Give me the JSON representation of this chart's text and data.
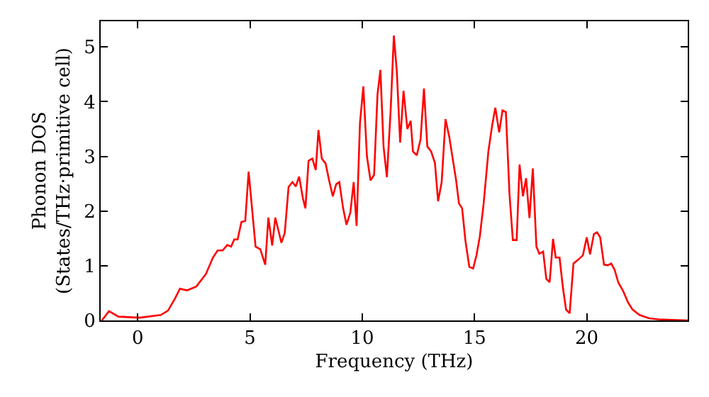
{
  "chart_data": {
    "type": "line",
    "xlabel": "Frequency (THz)",
    "ylabel": "Phonon DOS\n(States/THz·primitive cell)",
    "xlim": [
      -1.65,
      24.5
    ],
    "ylim": [
      0,
      5.47
    ],
    "xticks": [
      0,
      5,
      10,
      15,
      20
    ],
    "yticks": [
      0,
      1,
      2,
      3,
      4,
      5
    ],
    "marker": "none",
    "line_style": "solid",
    "series": [
      {
        "color": "#ff0000",
        "x": [
          -1.6,
          -1.28,
          -0.86,
          0.08,
          1.03,
          1.35,
          1.66,
          1.88,
          2.2,
          2.61,
          3.04,
          3.35,
          3.56,
          3.78,
          3.99,
          4.16,
          4.3,
          4.45,
          4.62,
          4.79,
          4.94,
          5.25,
          5.46,
          5.68,
          5.82,
          5.99,
          6.13,
          6.4,
          6.55,
          6.72,
          6.89,
          7.04,
          7.19,
          7.36,
          7.47,
          7.61,
          7.78,
          7.93,
          8.05,
          8.2,
          8.37,
          8.52,
          8.69,
          8.84,
          8.98,
          9.15,
          9.3,
          9.47,
          9.62,
          9.75,
          9.9,
          10.05,
          10.21,
          10.37,
          10.53,
          10.68,
          10.81,
          10.95,
          11.1,
          11.27,
          11.41,
          11.54,
          11.69,
          11.84,
          12.01,
          12.16,
          12.26,
          12.43,
          12.6,
          12.75,
          12.9,
          13.07,
          13.24,
          13.38,
          13.54,
          13.71,
          13.88,
          14.03,
          14.18,
          14.31,
          14.45,
          14.6,
          14.77,
          14.94,
          15.09,
          15.24,
          15.41,
          15.62,
          15.79,
          15.93,
          16.1,
          16.25,
          16.4,
          16.56,
          16.71,
          16.88,
          17.01,
          17.16,
          17.3,
          17.45,
          17.6,
          17.76,
          17.89,
          18.06,
          18.2,
          18.35,
          18.5,
          18.62,
          18.79,
          18.94,
          19.08,
          19.24,
          19.41,
          19.62,
          19.83,
          20.0,
          20.15,
          20.32,
          20.46,
          20.6,
          20.77,
          20.94,
          21.09,
          21.24,
          21.41,
          21.62,
          21.84,
          22.04,
          22.35,
          22.78,
          23.2,
          24.5
        ],
        "values": [
          0,
          0.17,
          0.07,
          0.05,
          0.1,
          0.18,
          0.4,
          0.58,
          0.55,
          0.62,
          0.85,
          1.15,
          1.28,
          1.28,
          1.38,
          1.35,
          1.48,
          1.48,
          1.8,
          1.82,
          2.72,
          1.35,
          1.3,
          1.02,
          1.88,
          1.37,
          1.88,
          1.42,
          1.6,
          2.44,
          2.53,
          2.45,
          2.63,
          2.23,
          2.05,
          2.92,
          2.96,
          2.75,
          3.48,
          2.96,
          2.87,
          2.57,
          2.27,
          2.49,
          2.53,
          2.05,
          1.75,
          1.97,
          2.53,
          1.73,
          3.61,
          4.28,
          3.0,
          2.56,
          2.66,
          4.13,
          4.58,
          3.18,
          2.62,
          3.87,
          5.21,
          4.56,
          3.25,
          4.2,
          3.5,
          3.65,
          3.09,
          3.02,
          3.31,
          4.24,
          3.18,
          3.09,
          2.88,
          2.18,
          2.53,
          3.68,
          3.35,
          2.96,
          2.57,
          2.14,
          2.05,
          1.45,
          0.98,
          0.95,
          1.19,
          1.54,
          2.14,
          3.09,
          3.57,
          3.89,
          3.44,
          3.84,
          3.81,
          2.31,
          1.47,
          1.47,
          2.85,
          2.27,
          2.6,
          1.87,
          2.78,
          1.35,
          1.22,
          1.26,
          0.76,
          0.7,
          1.49,
          1.15,
          1.15,
          0.6,
          0.2,
          0.13,
          1.04,
          1.11,
          1.19,
          1.52,
          1.21,
          1.58,
          1.61,
          1.52,
          1.02,
          1.01,
          1.04,
          0.93,
          0.69,
          0.54,
          0.33,
          0.2,
          0.1,
          0.04,
          0.02,
          0
        ]
      }
    ]
  }
}
